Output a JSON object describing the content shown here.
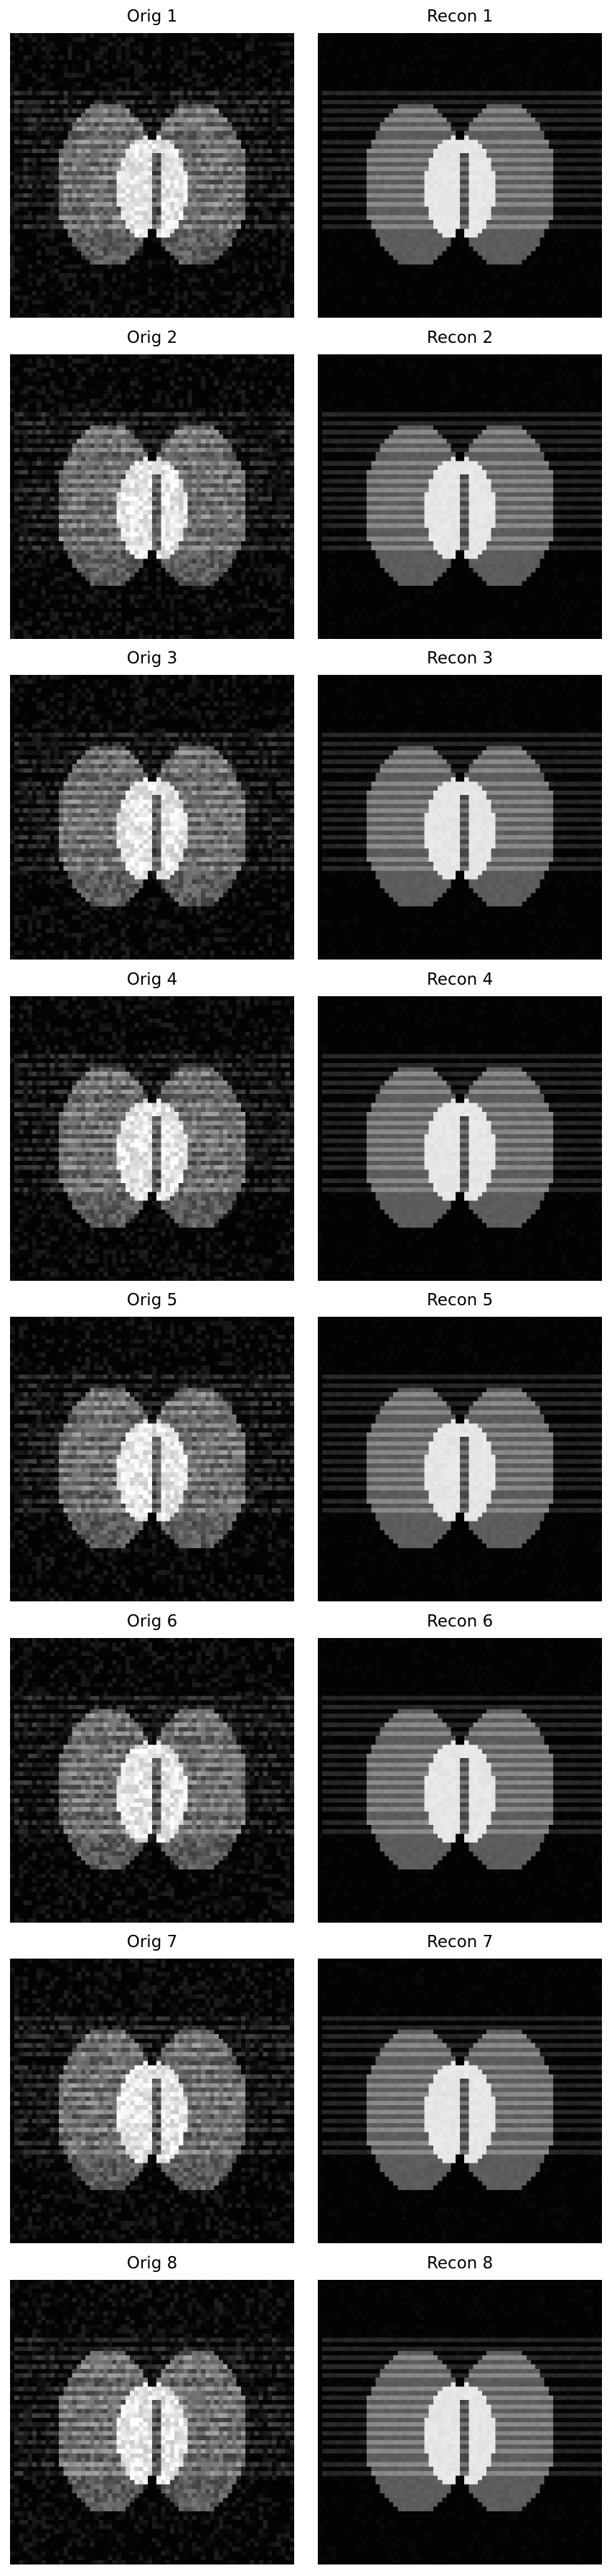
{
  "panels": [
    {
      "row": 1,
      "orig_title": "Orig 1",
      "recon_title": "Recon 1"
    },
    {
      "row": 2,
      "orig_title": "Orig 2",
      "recon_title": "Recon 2"
    },
    {
      "row": 3,
      "orig_title": "Orig 3",
      "recon_title": "Recon 3"
    },
    {
      "row": 4,
      "orig_title": "Orig 4",
      "recon_title": "Recon 4"
    },
    {
      "row": 5,
      "orig_title": "Orig 5",
      "recon_title": "Recon 5"
    },
    {
      "row": 6,
      "orig_title": "Orig 6",
      "recon_title": "Recon 6"
    },
    {
      "row": 7,
      "orig_title": "Orig 7",
      "recon_title": "Recon 7"
    },
    {
      "row": 8,
      "orig_title": "Orig 8",
      "recon_title": "Recon 8"
    }
  ],
  "colors": {
    "background": "#030303",
    "lobe": "#5c5c5c",
    "overlap": "#6e6e6e",
    "bright": "#e8e8e8",
    "stripe": "#8a8a8a",
    "title_text": "#000000"
  }
}
